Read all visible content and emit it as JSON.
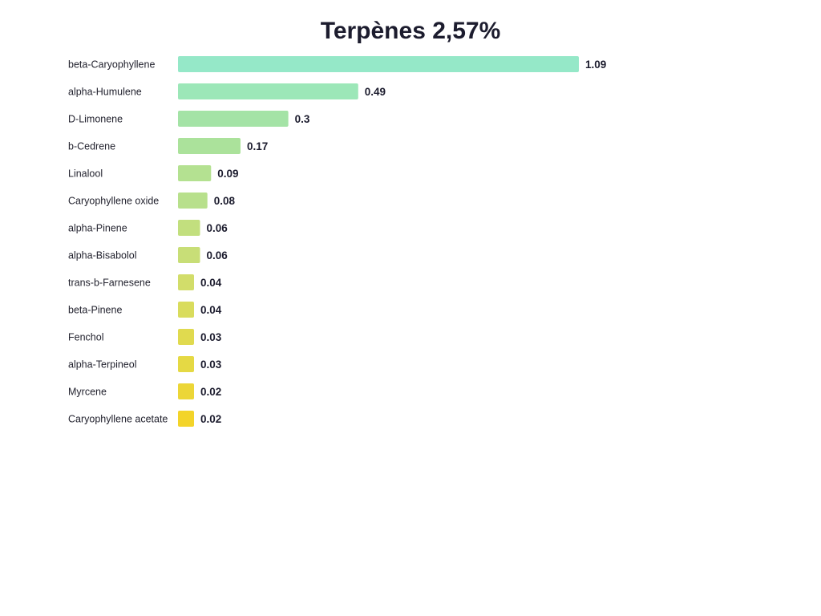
{
  "chart_data": {
    "type": "bar",
    "orientation": "horizontal",
    "title": "Terpènes 2,57%",
    "xlabel": "",
    "ylabel": "",
    "grid": false,
    "categories": [
      "beta-Caryophyllene",
      "alpha-Humulene",
      "D-Limonene",
      "b-Cedrene",
      "Linalool",
      "Caryophyllene oxide",
      "alpha-Pinene",
      "alpha-Bisabolol",
      "trans-b-Farnesene",
      "beta-Pinene",
      "Fenchol",
      "alpha-Terpineol",
      "Myrcene",
      "Caryophyllene acetate"
    ],
    "values": [
      1.09,
      0.49,
      0.3,
      0.17,
      0.09,
      0.08,
      0.06,
      0.06,
      0.04,
      0.04,
      0.03,
      0.03,
      0.02,
      0.02
    ],
    "value_labels": [
      "1.09",
      "0.49",
      "0.3",
      "0.17",
      "0.09",
      "0.08",
      "0.06",
      "0.06",
      "0.04",
      "0.04",
      "0.03",
      "0.03",
      "0.02",
      "0.02"
    ],
    "xlim": [
      0,
      1.09
    ],
    "colors": [
      "#95e8c8",
      "#9ce7b8",
      "#a4e3a6",
      "#abe29b",
      "#b4e191",
      "#b8e08c",
      "#c2df7e",
      "#c8de77",
      "#d2dd6a",
      "#d9dc5d",
      "#e0da4f",
      "#e5d944",
      "#ecd637",
      "#f3d42a"
    ]
  }
}
